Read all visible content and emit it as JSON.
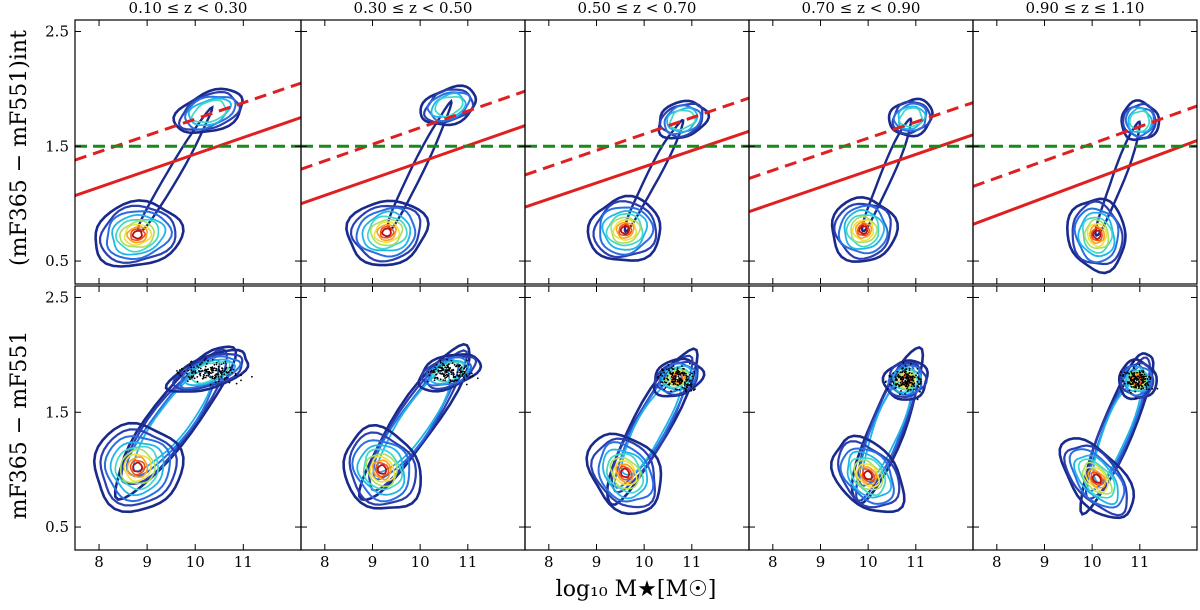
{
  "chart_data": {
    "type": "contour-grid",
    "layout": {
      "rows": 2,
      "cols": 5
    },
    "columns": [
      {
        "title": "0.10 ≤ z < 0.30"
      },
      {
        "title": "0.30 ≤ z < 0.50"
      },
      {
        "title": "0.50 ≤ z < 0.70"
      },
      {
        "title": "0.70 ≤ z < 0.90"
      },
      {
        "title": "0.90 ≤ z ≤ 1.10"
      }
    ],
    "xlabel": "log₁₀ M★[M☉]",
    "ylabels": [
      "(mF365 − mF551)int",
      "mF365 − mF551"
    ],
    "xlim": [
      7.5,
      12.2
    ],
    "ylim": [
      0.3,
      2.6
    ],
    "xticks": [
      8,
      9,
      10,
      11
    ],
    "xtick_labels": [
      "8",
      "9",
      "10",
      "11"
    ],
    "yticks": [
      0.5,
      1.5,
      2.5
    ],
    "ytick_labels": [
      "0.5",
      "1.5",
      "2.5"
    ],
    "green_line_y": 1.5,
    "colors": {
      "outer_contour": "#1a2a8c",
      "core": "#b81010",
      "red_line": "#e02020",
      "green_line": "#1a8a1a",
      "points": "#000000"
    },
    "top_row": [
      {
        "red_solid": [
          [
            7.5,
            1.07
          ],
          [
            12.2,
            1.75
          ]
        ],
        "red_dashed": [
          [
            7.5,
            1.38
          ],
          [
            12.2,
            2.05
          ]
        ],
        "blue_peak": {
          "x": 8.8,
          "y": 0.73,
          "sx": 0.55,
          "sy": 0.13
        },
        "red_peak": {
          "x": 10.3,
          "y": 1.8,
          "sx": 0.5,
          "sy": 0.1
        }
      },
      {
        "red_solid": [
          [
            7.5,
            1.0
          ],
          [
            12.2,
            1.68
          ]
        ],
        "red_dashed": [
          [
            7.5,
            1.3
          ],
          [
            12.2,
            1.98
          ]
        ],
        "blue_peak": {
          "x": 9.3,
          "y": 0.75,
          "sx": 0.5,
          "sy": 0.13
        },
        "red_peak": {
          "x": 10.6,
          "y": 1.85,
          "sx": 0.4,
          "sy": 0.09
        }
      },
      {
        "red_solid": [
          [
            7.5,
            0.97
          ],
          [
            12.2,
            1.63
          ]
        ],
        "red_dashed": [
          [
            7.5,
            1.25
          ],
          [
            12.2,
            1.92
          ]
        ],
        "blue_peak": {
          "x": 9.6,
          "y": 0.77,
          "sx": 0.45,
          "sy": 0.13
        },
        "red_peak": {
          "x": 10.8,
          "y": 1.73,
          "sx": 0.35,
          "sy": 0.09
        }
      },
      {
        "red_solid": [
          [
            7.5,
            0.93
          ],
          [
            12.2,
            1.6
          ]
        ],
        "red_dashed": [
          [
            7.5,
            1.22
          ],
          [
            12.2,
            1.88
          ]
        ],
        "blue_peak": {
          "x": 9.9,
          "y": 0.77,
          "sx": 0.4,
          "sy": 0.13
        },
        "red_peak": {
          "x": 10.9,
          "y": 1.75,
          "sx": 0.3,
          "sy": 0.09
        }
      },
      {
        "red_solid": [
          [
            7.5,
            0.82
          ],
          [
            12.2,
            1.55
          ]
        ],
        "red_dashed": [
          [
            7.5,
            1.15
          ],
          [
            12.2,
            1.85
          ]
        ],
        "blue_peak": {
          "x": 10.1,
          "y": 0.73,
          "sx": 0.35,
          "sy": 0.15
        },
        "red_peak": {
          "x": 11.0,
          "y": 1.72,
          "sx": 0.25,
          "sy": 0.1
        }
      }
    ],
    "bottom_row": [
      {
        "blue_peak": {
          "x": 8.8,
          "y": 1.02,
          "sx": 0.55,
          "sy": 0.18
        },
        "red_peak": {
          "x": 10.3,
          "y": 1.85,
          "sx": 0.6,
          "sy": 0.08
        }
      },
      {
        "blue_peak": {
          "x": 9.2,
          "y": 1.0,
          "sx": 0.45,
          "sy": 0.18
        },
        "red_peak": {
          "x": 10.6,
          "y": 1.85,
          "sx": 0.45,
          "sy": 0.08
        }
      },
      {
        "blue_peak": {
          "x": 9.6,
          "y": 0.97,
          "sx": 0.4,
          "sy": 0.18
        },
        "red_peak": {
          "x": 10.7,
          "y": 1.8,
          "sx": 0.35,
          "sy": 0.09
        }
      },
      {
        "blue_peak": {
          "x": 10.0,
          "y": 0.95,
          "sx": 0.35,
          "sy": 0.18
        },
        "red_peak": {
          "x": 10.8,
          "y": 1.78,
          "sx": 0.3,
          "sy": 0.1
        }
      },
      {
        "blue_peak": {
          "x": 10.1,
          "y": 0.92,
          "sx": 0.3,
          "sy": 0.2
        },
        "red_peak": {
          "x": 10.95,
          "y": 1.78,
          "sx": 0.25,
          "sy": 0.1
        }
      }
    ]
  }
}
